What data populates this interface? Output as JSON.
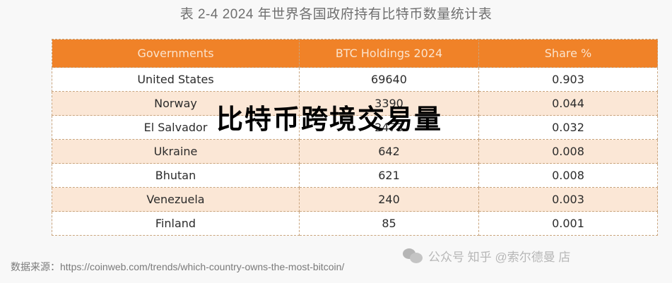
{
  "title": "表 2-4 2024 年世界各国政府持有比特币数量统计表",
  "table": {
    "headers": [
      "Governments",
      "BTC Holdings 2024",
      "Share %"
    ],
    "rows": [
      [
        "United States",
        "69640",
        "0.903"
      ],
      [
        "Norway",
        "3390",
        "0.044"
      ],
      [
        "El Salvador",
        "2473",
        "0.032"
      ],
      [
        "Ukraine",
        "642",
        "0.008"
      ],
      [
        "Bhutan",
        "621",
        "0.008"
      ],
      [
        "Venezuela",
        "240",
        "0.003"
      ],
      [
        "Finland",
        "85",
        "0.001"
      ]
    ]
  },
  "overlay_text": "比特币跨境交易量",
  "source": "数据来源：https://coinweb.com/trends/which-country-owns-the-most-bitcoin/",
  "watermark": {
    "icon": "wechat-icon",
    "text": "公众号 知乎 @索尔德曼 店"
  },
  "colors": {
    "header_bg": "#f08228",
    "header_text": "#fbe3cc",
    "row_alt": "#fbe7d6",
    "border": "#c9a47d"
  }
}
